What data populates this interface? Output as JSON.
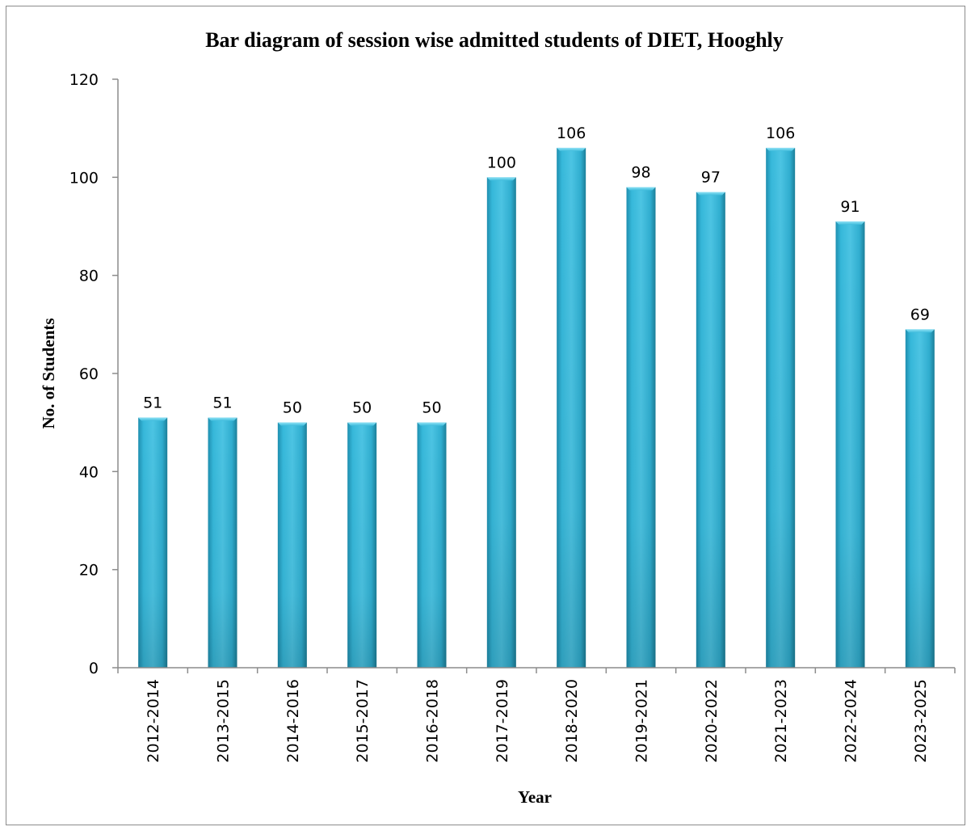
{
  "chart_data": {
    "type": "bar",
    "title": "Bar diagram of session wise admitted students of DIET, Hooghly",
    "xlabel": "Year",
    "ylabel": "No. of Students",
    "categories": [
      "2012-2014",
      "2013-2015",
      "2014-2016",
      "2015-2017",
      "2016-2018",
      "2017-2019",
      "2018-2020",
      "2019-2021",
      "2020-2022",
      "2021-2023",
      "2022-2024",
      "2023-2025"
    ],
    "values": [
      51,
      51,
      50,
      50,
      50,
      100,
      106,
      98,
      97,
      106,
      91,
      69
    ],
    "ylim": [
      0,
      120
    ],
    "yticks": [
      0,
      20,
      40,
      60,
      80,
      100,
      120
    ],
    "grid": false,
    "legend": "none",
    "data_labels": true,
    "bar_color": "#2eaed0",
    "bar_edge_color": "#1c7f99",
    "axis_color": "#8c8c8c"
  }
}
